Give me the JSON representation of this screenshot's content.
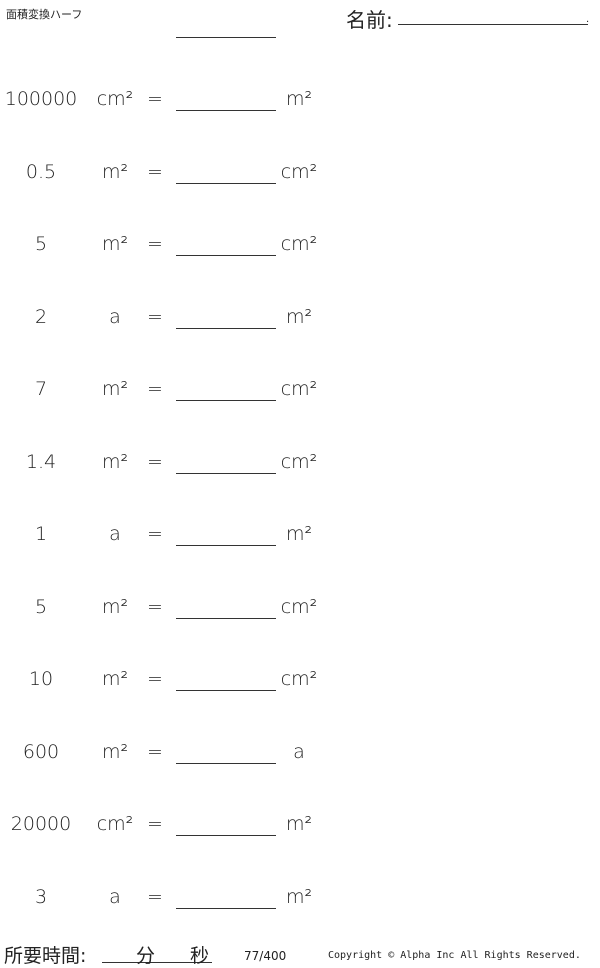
{
  "header": {
    "title": "面積変換ハーフ",
    "name_label": "名前:",
    "name_dot": "."
  },
  "problems": [
    {
      "value": "100000",
      "from": "cm²",
      "to": "m²"
    },
    {
      "value": "0.5",
      "from": "m²",
      "to": "cm²"
    },
    {
      "value": "5",
      "from": "m²",
      "to": "cm²"
    },
    {
      "value": "2",
      "from": "a",
      "to": "m²"
    },
    {
      "value": "7",
      "from": "m²",
      "to": "cm²"
    },
    {
      "value": "1.4",
      "from": "m²",
      "to": "cm²"
    },
    {
      "value": "1",
      "from": "a",
      "to": "m²"
    },
    {
      "value": "5",
      "from": "m²",
      "to": "cm²"
    },
    {
      "value": "10",
      "from": "m²",
      "to": "cm²"
    },
    {
      "value": "600",
      "from": "m²",
      "to": "a"
    },
    {
      "value": "20000",
      "from": "cm²",
      "to": "m²"
    },
    {
      "value": "3",
      "from": "a",
      "to": "m²"
    }
  ],
  "equals": "=",
  "footer": {
    "time_label": "所要時間:",
    "minutes": "分",
    "seconds": "秒",
    "page": "77/400",
    "copyright": "Copyright © Alpha Inc All Rights Reserved."
  }
}
